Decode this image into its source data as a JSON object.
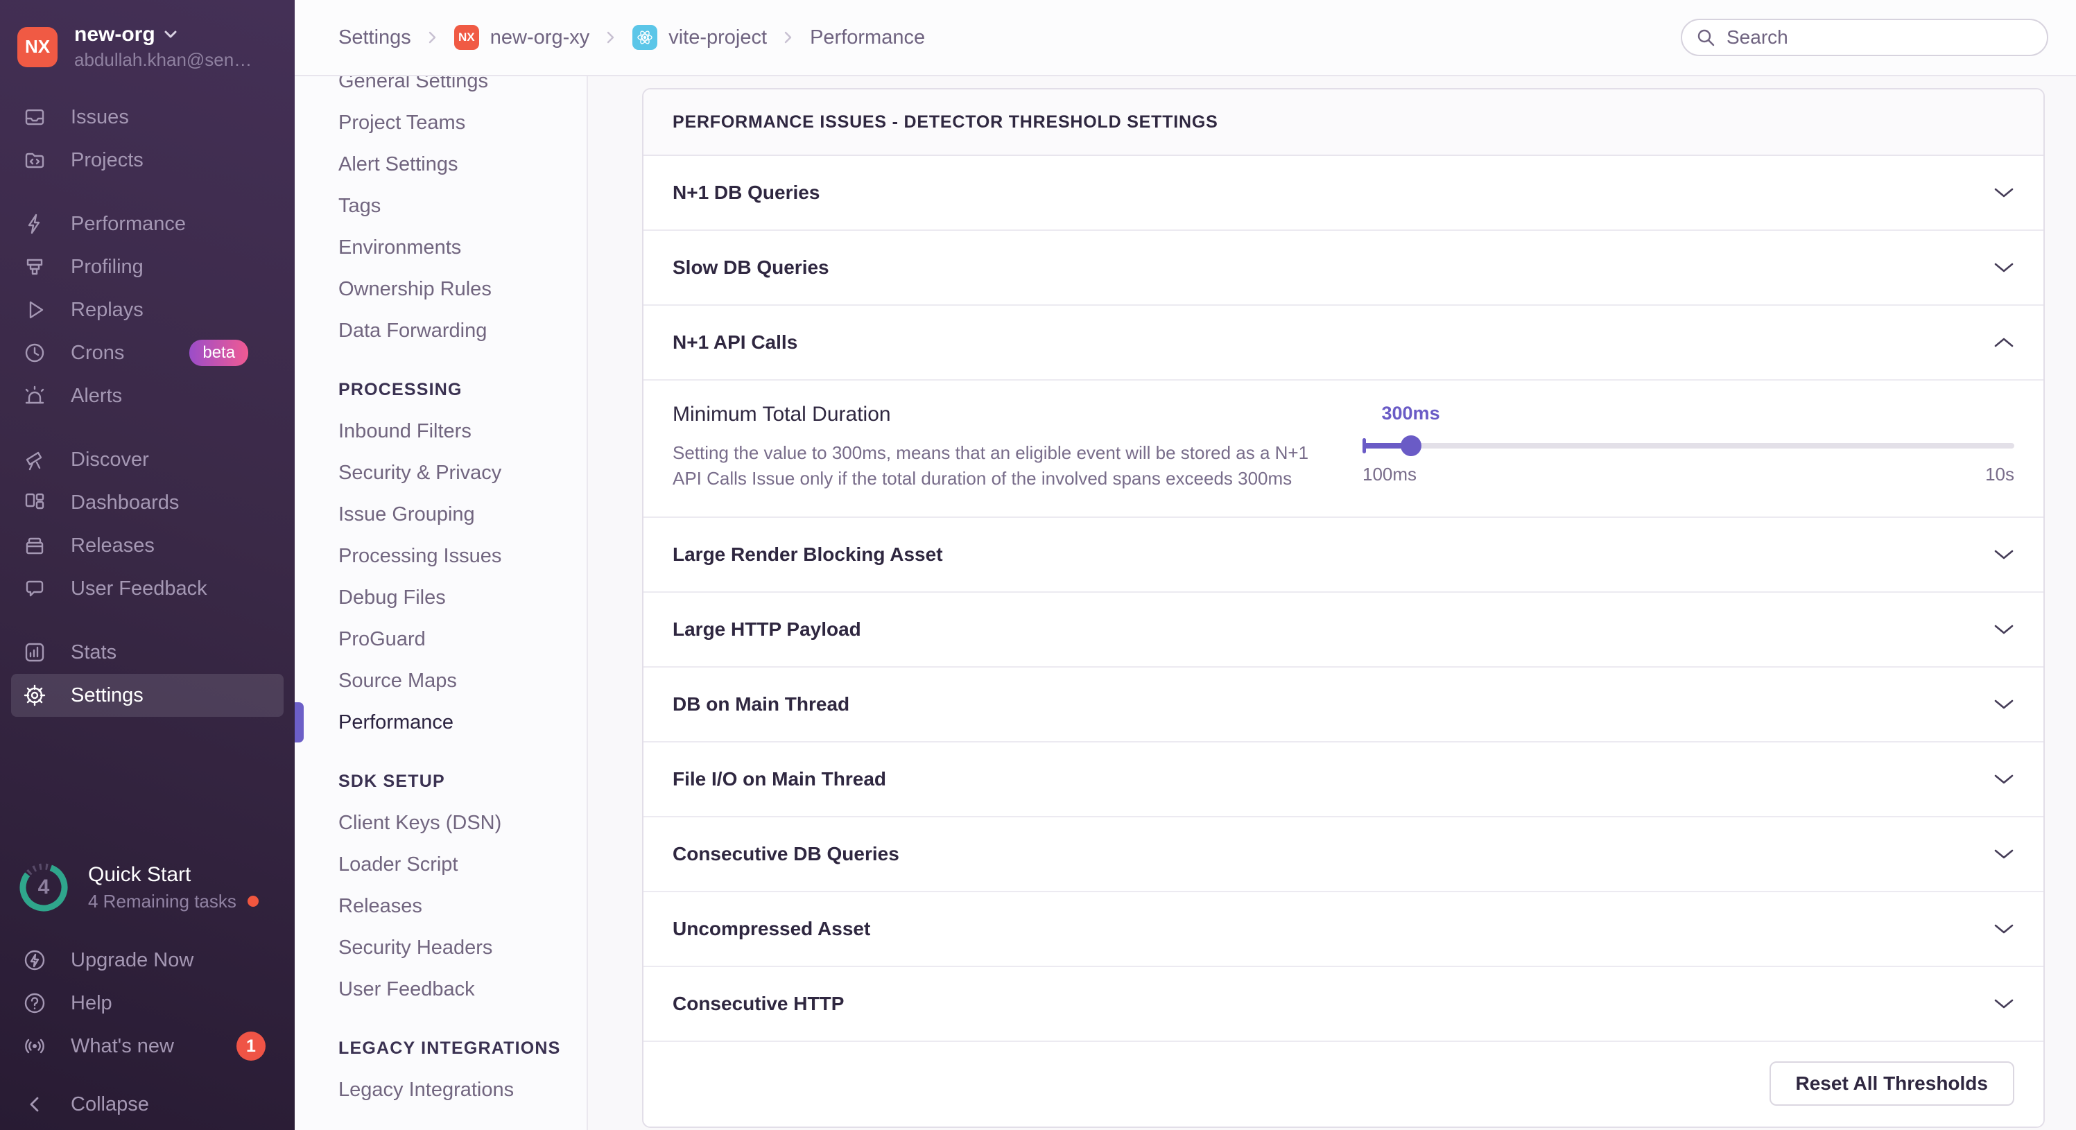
{
  "org": {
    "initials": "NX",
    "name": "new-org",
    "email": "abdullah.khan@sen…"
  },
  "sidebar": {
    "group1": [
      {
        "label": "Issues"
      },
      {
        "label": "Projects"
      }
    ],
    "group2": [
      {
        "label": "Performance"
      },
      {
        "label": "Profiling"
      },
      {
        "label": "Replays"
      },
      {
        "label": "Crons",
        "badge": "beta"
      },
      {
        "label": "Alerts"
      }
    ],
    "group3": [
      {
        "label": "Discover"
      },
      {
        "label": "Dashboards"
      },
      {
        "label": "Releases"
      },
      {
        "label": "User Feedback"
      }
    ],
    "group4": [
      {
        "label": "Stats"
      },
      {
        "label": "Settings"
      }
    ],
    "quick_start": {
      "title": "Quick Start",
      "subtitle": "4 Remaining tasks",
      "count": "4"
    },
    "footer": [
      {
        "label": "Upgrade Now"
      },
      {
        "label": "Help"
      },
      {
        "label": "What's new",
        "badge": "1"
      }
    ],
    "collapse_label": "Collapse"
  },
  "topbar": {
    "breadcrumb": [
      {
        "label": "Settings"
      },
      {
        "label": "new-org-xy",
        "badge": "NX"
      },
      {
        "label": "vite-project"
      },
      {
        "label": "Performance"
      }
    ],
    "search_placeholder": "Search"
  },
  "settings_nav": {
    "sections": [
      {
        "items": [
          "General Settings",
          "Project Teams",
          "Alert Settings",
          "Tags",
          "Environments",
          "Ownership Rules",
          "Data Forwarding"
        ]
      },
      {
        "header": "PROCESSING",
        "items": [
          "Inbound Filters",
          "Security & Privacy",
          "Issue Grouping",
          "Processing Issues",
          "Debug Files",
          "ProGuard",
          "Source Maps",
          "Performance"
        ]
      },
      {
        "header": "SDK SETUP",
        "items": [
          "Client Keys (DSN)",
          "Loader Script",
          "Releases",
          "Security Headers",
          "User Feedback"
        ]
      },
      {
        "header": "LEGACY INTEGRATIONS",
        "items": [
          "Legacy Integrations"
        ]
      }
    ],
    "active_item": "Performance"
  },
  "panel": {
    "title": "PERFORMANCE ISSUES - DETECTOR THRESHOLD SETTINGS",
    "rows_top": [
      "N+1 DB Queries",
      "Slow DB Queries",
      "N+1 API Calls"
    ],
    "rows_bottom": [
      "Large Render Blocking Asset",
      "Large HTTP Payload",
      "DB on Main Thread",
      "File I/O on Main Thread",
      "Consecutive DB Queries",
      "Uncompressed Asset",
      "Consecutive HTTP"
    ],
    "expanded": {
      "title": "Minimum Total Duration",
      "description": "Setting the value to 300ms, means that an eligible event will be stored as a N+1 API Calls Issue only if the total duration of the involved spans exceeds 300ms",
      "slider": {
        "value": "300ms",
        "min": "100ms",
        "max": "10s",
        "percent": 7.4
      }
    },
    "reset_button": "Reset All Thresholds"
  },
  "colors": {
    "accent": "#6a5bc6",
    "nav_active_indicator": "#6c5fc7",
    "org_avatar": "#f05a44",
    "react_badge": "#5bc6e8",
    "beta_badge_gradient": [
      "#9b4dc9",
      "#f05a93"
    ],
    "notification_badge": "#ef5446",
    "progress_ring": "#2fa68c",
    "alert_dot": "#f1573f"
  }
}
